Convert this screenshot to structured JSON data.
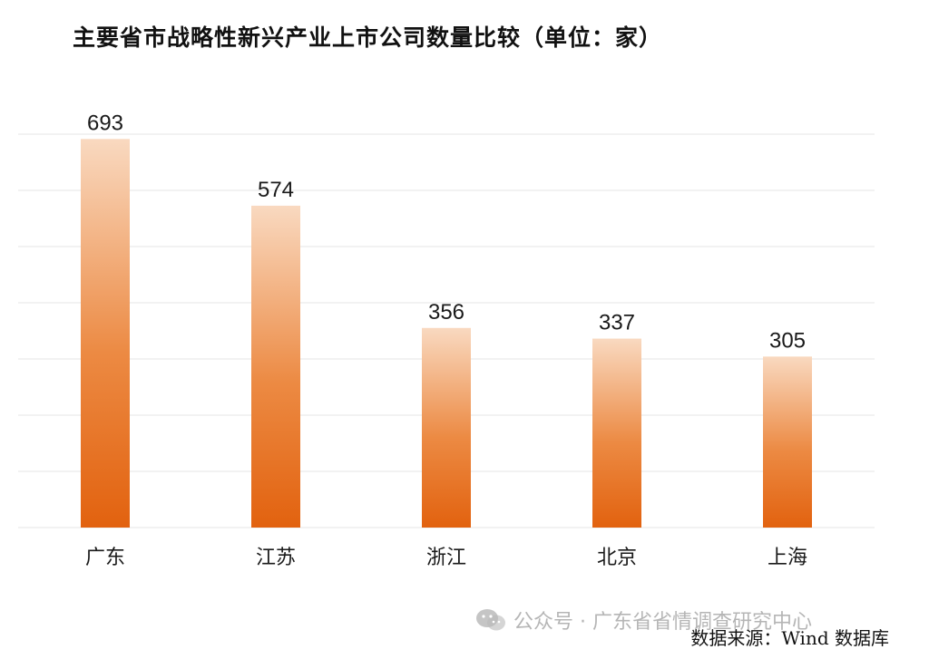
{
  "title": "主要省市战略性新兴产业上市公司数量比较（单位：家）",
  "chart_data": {
    "type": "bar",
    "categories": [
      "广东",
      "江苏",
      "浙江",
      "北京",
      "上海"
    ],
    "values": [
      693,
      574,
      356,
      337,
      305
    ],
    "ylim": [
      0,
      700
    ],
    "grid": true,
    "bar_color_top": "#f9d9c0",
    "bar_color_bottom": "#e2620f",
    "grid_color": "#e6e6e6"
  },
  "watermark": {
    "text": "公众号 · 广东省省情调查研究中心",
    "icon": "wechat-icon"
  },
  "source": "数据来源：Wind 数据库"
}
